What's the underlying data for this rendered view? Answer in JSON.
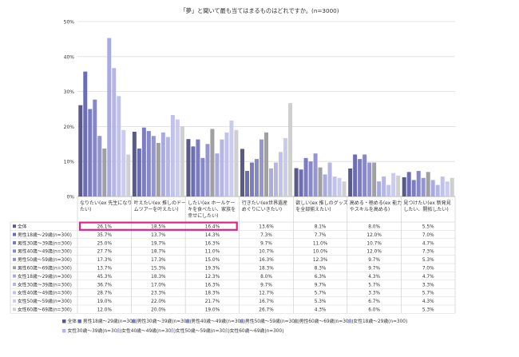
{
  "chart_data": {
    "type": "bar",
    "title": "「夢」と聞いて最も当てはまるものはどれですか。(n=3000)",
    "ylim": [
      0,
      50
    ],
    "yticks": [
      "0%",
      "10%",
      "20%",
      "30%",
      "40%",
      "50%"
    ],
    "grid": true,
    "legend_position": "bottom",
    "categories": [
      [
        "なりたい(ex 先生になり",
        "たい)"
      ],
      [
        "叶えたい(ex 推しのドー",
        "ムツアーを叶えたい)"
      ],
      [
        "したい(ex ホールケー",
        "キを食べたい、家族を",
        "幸せにしたい)"
      ],
      [
        "行きたい(ex世界遺産",
        "めぐりにいきたい)"
      ],
      [
        "欲しい(ex 推しのグッズ",
        "を全部揃えたい)"
      ],
      [
        "高める・極める(ex 能力",
        "やスキルを高める)"
      ],
      [
        "見つけたい(ex 新発見",
        "したい、開拓したい)"
      ]
    ],
    "series": [
      {
        "name": "全体",
        "color": "#595a86",
        "values": [
          26.1,
          18.5,
          16.4,
          13.6,
          8.1,
          8.0,
          5.5
        ]
      },
      {
        "name": "男性18歳～29歳(n=300)",
        "color": "#6c6db3",
        "values": [
          35.7,
          13.7,
          14.3,
          7.3,
          7.7,
          12.0,
          7.0
        ]
      },
      {
        "name": "男性30歳～39歳(n=300)",
        "color": "#7b7cc1",
        "values": [
          25.0,
          19.7,
          16.3,
          9.7,
          11.0,
          10.7,
          4.7
        ]
      },
      {
        "name": "男性40歳～49歳(n=300)",
        "color": "#8788c8",
        "values": [
          27.7,
          18.7,
          11.0,
          10.7,
          10.0,
          12.0,
          7.3
        ]
      },
      {
        "name": "男性50歳～59歳(n=300)",
        "color": "#9596cf",
        "values": [
          17.3,
          17.3,
          15.0,
          16.3,
          12.3,
          9.7,
          5.3
        ]
      },
      {
        "name": "男性60歳～69歳(n=300)",
        "color": "#a0a0a0",
        "values": [
          13.7,
          15.3,
          19.3,
          18.3,
          8.3,
          9.7,
          7.0
        ]
      },
      {
        "name": "女性18歳～29歳(n=300)",
        "color": "#a9aade",
        "values": [
          45.3,
          18.3,
          12.3,
          8.0,
          6.3,
          4.3,
          4.7
        ]
      },
      {
        "name": "女性30歳～39歳(n=300)",
        "color": "#b5b6e4",
        "values": [
          36.7,
          17.0,
          16.3,
          9.7,
          9.7,
          5.7,
          3.3
        ]
      },
      {
        "name": "女性40歳～49歳(n=300)",
        "color": "#c1c2ea",
        "values": [
          28.7,
          23.3,
          18.3,
          12.7,
          5.7,
          3.3,
          5.7
        ]
      },
      {
        "name": "女性50歳～59歳(n=300)",
        "color": "#cbcbee",
        "values": [
          19.0,
          22.0,
          21.7,
          16.7,
          5.3,
          6.7,
          4.3
        ]
      },
      {
        "name": "女性60歳～69歳(n=300)",
        "color": "#cfcfcf",
        "values": [
          12.0,
          20.0,
          19.0,
          26.7,
          4.3,
          6.0,
          5.3
        ]
      }
    ],
    "table_row_labels": [
      "全体",
      "男性18歳～29歳(n=300)",
      "男性30歳～39歳(n=300)",
      "男性40歳～49歳(n=300)",
      "男性50歳～59歳(n=300)",
      "男性60歳～69歳(n=300)",
      "女性18歳～29歳(n=300)",
      "女性30歳～39歳(n=300)",
      "女性40歳～49歳(n=300)",
      "女性50歳～59歳(n=300)",
      "女性60歳～69歳(n=300)"
    ],
    "highlight": {
      "row": 0,
      "columns": [
        0,
        1,
        2
      ],
      "color": "#e0218a"
    }
  }
}
